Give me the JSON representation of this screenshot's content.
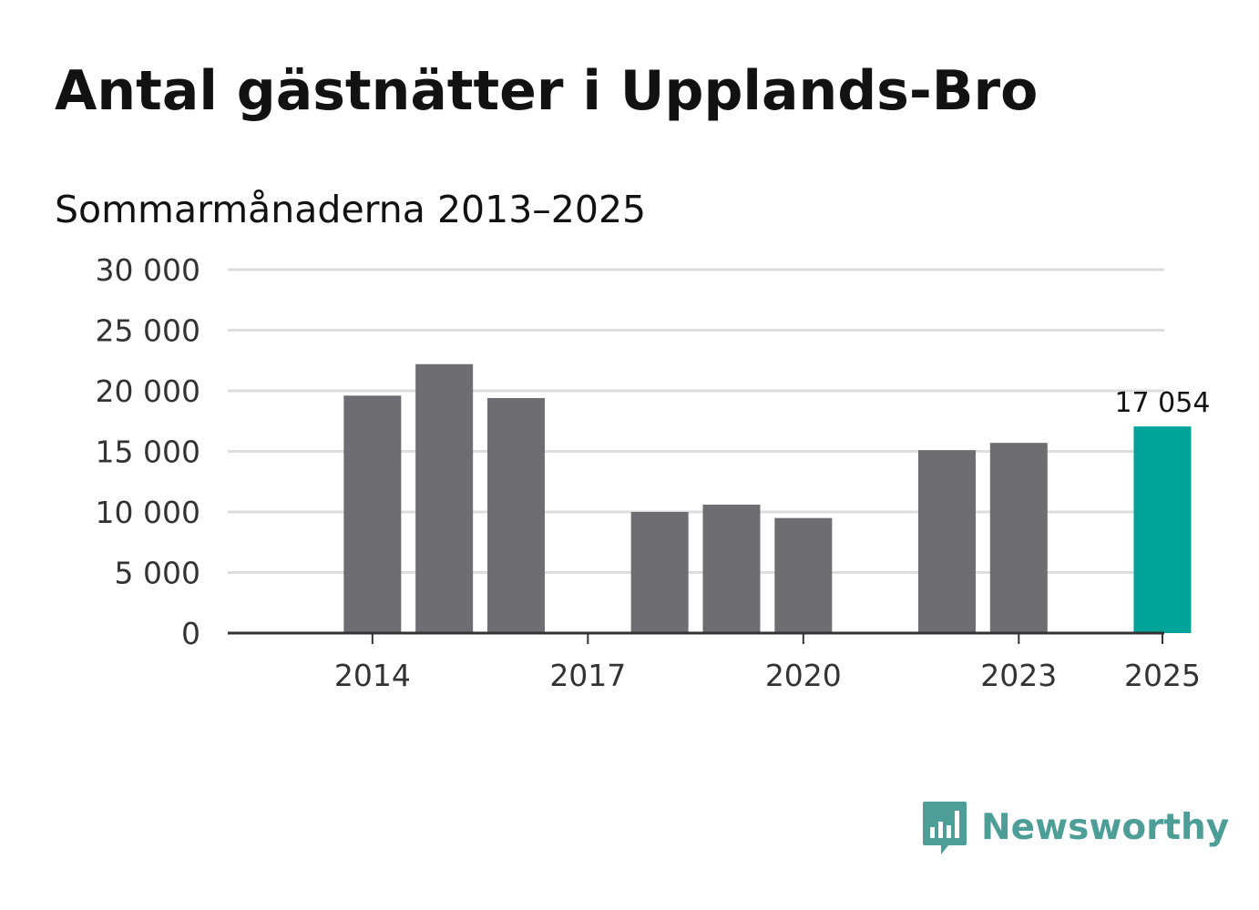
{
  "header": {
    "title": "Antal gästnätter i Upplands-Bro",
    "subtitle": "Sommarmånaderna 2013–2025"
  },
  "colors": {
    "bar": "#6e6d72",
    "highlight": "#00a398",
    "grid": "#dddddd",
    "axis": "#333333",
    "brand": "#4e9e98"
  },
  "branding": {
    "logo_text": "Newsworthy",
    "logo_icon": "bar-chart-speech-bubble-icon"
  },
  "chart_data": {
    "type": "bar",
    "categories": [
      "2013",
      "2014",
      "2015",
      "2016",
      "2017",
      "2018",
      "2019",
      "2020",
      "2021",
      "2022",
      "2023",
      "2024",
      "2025"
    ],
    "values": [
      null,
      19600,
      22200,
      19400,
      null,
      10000,
      10600,
      9500,
      null,
      15100,
      15700,
      null,
      17054
    ],
    "highlight_category": "2025",
    "data_labels": [
      {
        "category": "2025",
        "text": "17 054"
      }
    ],
    "ylim": [
      0,
      30000
    ],
    "y_ticks": [
      0,
      5000,
      10000,
      15000,
      20000,
      25000,
      30000
    ],
    "y_tick_labels": [
      "0",
      "5 000",
      "10 000",
      "15 000",
      "20 000",
      "25 000",
      "30 000"
    ],
    "x_tick_labels": [
      "2014",
      "2017",
      "2020",
      "2023",
      "2025"
    ],
    "grid": true,
    "title": "Antal gästnätter i Upplands-Bro",
    "subtitle": "Sommarmånaderna 2013–2025",
    "xlabel": "",
    "ylabel": ""
  }
}
